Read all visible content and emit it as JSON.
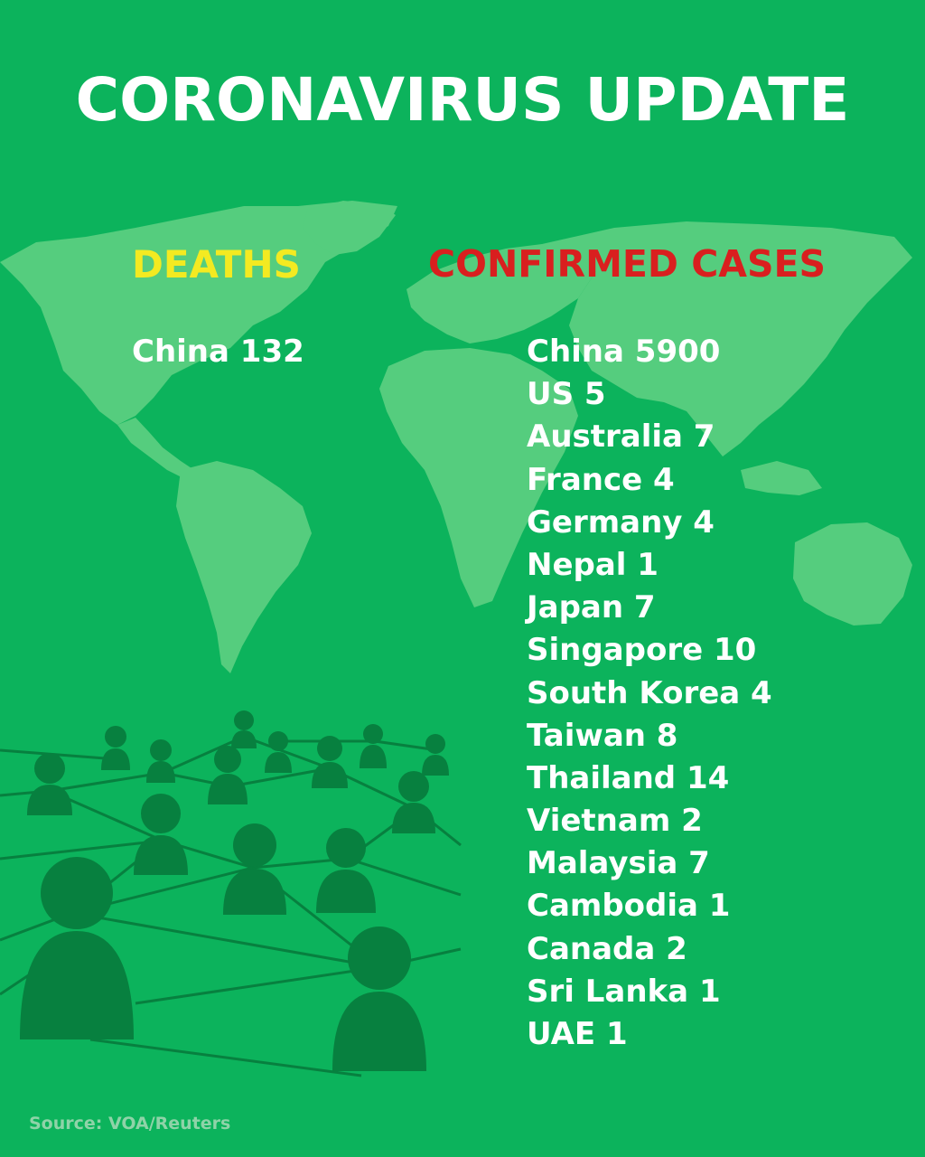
{
  "title": "CORONAVIRUS UPDATE",
  "deaths": {
    "heading": "DEATHS",
    "color": "#f3ea21",
    "items": [
      "China 132"
    ]
  },
  "cases": {
    "heading": "CONFIRMED CASES",
    "color": "#d91f1f",
    "items": [
      "China 5900",
      "US 5",
      "Australia 7",
      "France 4",
      "Germany 4",
      "Nepal 1",
      "Japan 7",
      "Singapore 10",
      "South Korea 4",
      "Taiwan 8",
      "Thailand 14",
      "Vietnam 2",
      "Malaysia 7",
      "Cambodia 1",
      "Canada 2",
      "Sri Lanka 1",
      "UAE 1"
    ]
  },
  "source": "Source: VOA/Reuters",
  "colors": {
    "background": "#0cb35c",
    "map": "#55cd7e",
    "people": "#07803f"
  },
  "illustrations": [
    "world-map",
    "people-network"
  ]
}
